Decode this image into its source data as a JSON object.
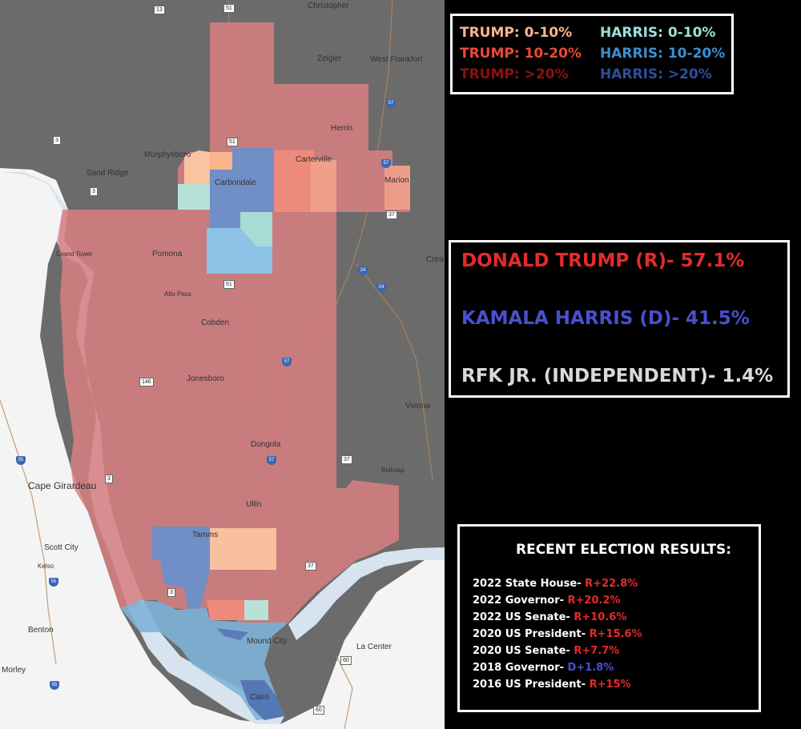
{
  "legend": {
    "trump": [
      {
        "label": "TRUMP: 0-10%",
        "color": "#f9b48e"
      },
      {
        "label": "TRUMP: 10-20%",
        "color": "#e84a3a"
      },
      {
        "label": "TRUMP: >20%",
        "color": "#8c1111"
      }
    ],
    "harris": [
      {
        "label": "HARRIS: 0-10%",
        "color": "#9ee0d8"
      },
      {
        "label": "HARRIS: 10-20%",
        "color": "#3c8fd0"
      },
      {
        "label": "HARRIS: >20%",
        "color": "#2d4f9c"
      }
    ]
  },
  "results": [
    {
      "text": "DONALD TRUMP (R)- 57.1%",
      "color": "#e62a2a"
    },
    {
      "text": "KAMALA HARRIS (D)- 41.5%",
      "color": "#4a4fd0"
    },
    {
      "text": "RFK JR. (INDEPENDENT)- 1.4%",
      "color": "#d9d9d9"
    }
  ],
  "recent": {
    "title": "RECENT ELECTION RESULTS:",
    "items": [
      {
        "label": "2022 State House- ",
        "value": "R+22.8%",
        "color": "#e62a2a"
      },
      {
        "label": "2022 Governor- ",
        "value": "R+20.2%",
        "color": "#e62a2a"
      },
      {
        "label": "2022 US Senate- ",
        "value": "R+10.6%",
        "color": "#e62a2a"
      },
      {
        "label": "2020 US President- ",
        "value": "R+15.6%",
        "color": "#e62a2a"
      },
      {
        "label": "2020 US Senate- ",
        "value": "R+7.7%",
        "color": "#e62a2a"
      },
      {
        "label": "2018 Governor- ",
        "value": "D+1.8%",
        "color": "#4a4fd0"
      },
      {
        "label": "2016 US President- ",
        "value": "R+15%",
        "color": "#e62a2a"
      }
    ]
  },
  "map": {
    "places": [
      {
        "name": "Christopher"
      },
      {
        "name": "Zeigler"
      },
      {
        "name": "West Frankfort"
      },
      {
        "name": "Herrin"
      },
      {
        "name": "Murphysboro"
      },
      {
        "name": "Carterville"
      },
      {
        "name": "Sand Ridge"
      },
      {
        "name": "Carbondale"
      },
      {
        "name": "Marion"
      },
      {
        "name": "Grand Tower"
      },
      {
        "name": "Pomona"
      },
      {
        "name": "Crea"
      },
      {
        "name": "Alto Pass"
      },
      {
        "name": "Cobden"
      },
      {
        "name": "Jonesboro"
      },
      {
        "name": "Vienna"
      },
      {
        "name": "Dongola"
      },
      {
        "name": "Belknap"
      },
      {
        "name": "Cape Girardeau"
      },
      {
        "name": "Ullin"
      },
      {
        "name": "Tamms"
      },
      {
        "name": "Scott City"
      },
      {
        "name": "Kelso"
      },
      {
        "name": "Benton"
      },
      {
        "name": "Mound City"
      },
      {
        "name": "La Center"
      },
      {
        "name": "Morley"
      },
      {
        "name": "Cairo"
      }
    ],
    "shields": [
      "13",
      "51",
      "3",
      "3",
      "51",
      "37",
      "3",
      "146",
      "37",
      "3",
      "37",
      "3",
      "60",
      "60"
    ],
    "interstates": [
      "57",
      "57",
      "24",
      "24",
      "57",
      "57",
      "55",
      "55",
      "55"
    ]
  }
}
